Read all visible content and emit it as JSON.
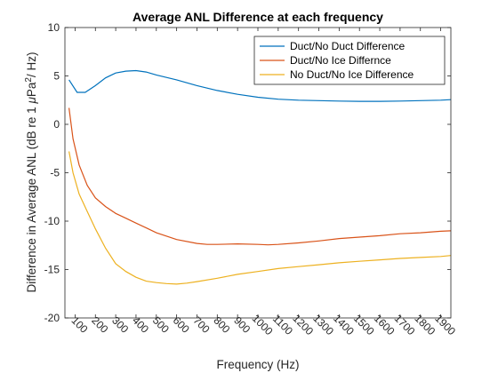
{
  "chart_data": {
    "type": "line",
    "title": "Average ANL Difference at each frequency",
    "xlabel": "Frequency (Hz)",
    "ylabel_parts": [
      "Difference in Average ANL (dB re 1 ",
      "μ",
      "Pa",
      "2",
      "/ Hz)"
    ],
    "xlim": [
      50,
      1950
    ],
    "ylim": [
      -20,
      10
    ],
    "xticks": [
      100,
      200,
      300,
      400,
      500,
      600,
      700,
      800,
      900,
      1000,
      1100,
      1200,
      1300,
      1400,
      1500,
      1600,
      1700,
      1800,
      1900
    ],
    "yticks": [
      -20,
      -15,
      -10,
      -5,
      0,
      5,
      10
    ],
    "legend_location": "top-right",
    "grid": false,
    "series": [
      {
        "name": "Duct/No Duct Difference",
        "color": "#0072BD",
        "x": [
          70,
          110,
          150,
          200,
          250,
          300,
          350,
          400,
          450,
          500,
          600,
          700,
          800,
          900,
          1000,
          1100,
          1200,
          1300,
          1400,
          1500,
          1600,
          1700,
          1800,
          1900,
          1950
        ],
        "y": [
          4.6,
          3.3,
          3.3,
          4.0,
          4.8,
          5.3,
          5.5,
          5.55,
          5.4,
          5.1,
          4.6,
          4.0,
          3.5,
          3.1,
          2.8,
          2.6,
          2.5,
          2.45,
          2.4,
          2.38,
          2.38,
          2.4,
          2.45,
          2.5,
          2.55
        ]
      },
      {
        "name": "Duct/No Ice Differnce",
        "color": "#D95319",
        "x": [
          70,
          90,
          120,
          160,
          200,
          250,
          300,
          350,
          400,
          450,
          500,
          600,
          700,
          750,
          800,
          900,
          1000,
          1050,
          1100,
          1200,
          1300,
          1400,
          1500,
          1600,
          1700,
          1800,
          1900,
          1950
        ],
        "y": [
          1.7,
          -1.5,
          -4.2,
          -6.3,
          -7.6,
          -8.5,
          -9.2,
          -9.7,
          -10.2,
          -10.7,
          -11.2,
          -11.9,
          -12.3,
          -12.4,
          -12.4,
          -12.35,
          -12.4,
          -12.45,
          -12.4,
          -12.25,
          -12.05,
          -11.8,
          -11.65,
          -11.5,
          -11.3,
          -11.2,
          -11.05,
          -11.0
        ]
      },
      {
        "name": "No Duct/No Ice Difference",
        "color": "#EDB120",
        "x": [
          70,
          90,
          120,
          160,
          200,
          250,
          300,
          350,
          400,
          450,
          500,
          550,
          600,
          650,
          700,
          800,
          900,
          1000,
          1100,
          1200,
          1300,
          1400,
          1500,
          1600,
          1700,
          1800,
          1900,
          1950
        ],
        "y": [
          -2.8,
          -5.0,
          -7.2,
          -9.0,
          -10.8,
          -12.8,
          -14.4,
          -15.2,
          -15.8,
          -16.2,
          -16.35,
          -16.45,
          -16.5,
          -16.4,
          -16.25,
          -15.9,
          -15.5,
          -15.2,
          -14.9,
          -14.7,
          -14.5,
          -14.3,
          -14.15,
          -14.0,
          -13.85,
          -13.75,
          -13.65,
          -13.55
        ]
      }
    ]
  }
}
